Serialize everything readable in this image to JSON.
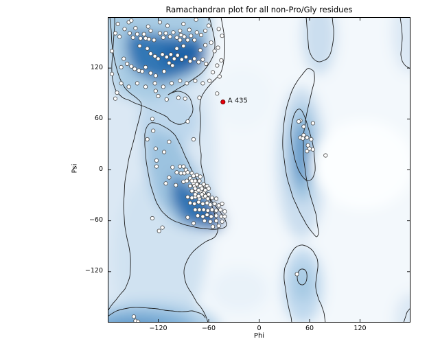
{
  "figure": {
    "title": "Ramachandran plot for all non-Pro/Gly residues",
    "xlabel": "Phi",
    "ylabel": "Psi"
  },
  "chart_data": {
    "type": "scatter",
    "title": "Ramachandran plot for all non-Pro/Gly residues",
    "xlabel": "Phi",
    "ylabel": "Psi",
    "xlim": [
      -180,
      180
    ],
    "ylim": [
      -180,
      180
    ],
    "grid": false,
    "legend": "none",
    "background": "blue kernel-density shading (light=low, dark blue=high) with black contour outlines of the favored and allowed regions (beta-sheet top-left, alpha-helix middle-left, left-handed alpha at phi~55, minor regions bottom-right and at plot edges)",
    "xticks": [
      {
        "value": -120,
        "label": "−120"
      },
      {
        "value": -60,
        "label": "−60"
      },
      {
        "value": 0,
        "label": "0"
      },
      {
        "value": 60,
        "label": "60"
      },
      {
        "value": 120,
        "label": "120"
      }
    ],
    "yticks": [
      {
        "value": 120,
        "label": "120"
      },
      {
        "value": 60,
        "label": "60"
      },
      {
        "value": 0,
        "label": "0"
      },
      {
        "value": -60,
        "label": "−60"
      },
      {
        "value": -120,
        "label": "−120"
      }
    ],
    "series": [
      {
        "name": "non-Pro/Gly residues",
        "marker": "circle",
        "fill": "#ffffff",
        "edge": "#4a4a4a",
        "radius": 2.7,
        "points": [
          [
            -160,
            166
          ],
          [
            -147,
            167
          ],
          [
            -132,
            169
          ],
          [
            -129,
            164
          ],
          [
            -109,
            170
          ],
          [
            -94,
            164
          ],
          [
            -93,
            159
          ],
          [
            -83,
            165
          ],
          [
            -74,
            162
          ],
          [
            -69,
            159
          ],
          [
            -64,
            164
          ],
          [
            -171,
            161
          ],
          [
            -166,
            157
          ],
          [
            -154,
            161
          ],
          [
            -150,
            156
          ],
          [
            -145,
            160
          ],
          [
            -141,
            155
          ],
          [
            -137,
            160
          ],
          [
            -135,
            155
          ],
          [
            -131,
            154
          ],
          [
            -125,
            153
          ],
          [
            -118,
            161
          ],
          [
            -114,
            156
          ],
          [
            -111,
            161
          ],
          [
            -106,
            157
          ],
          [
            -102,
            162
          ],
          [
            -98,
            156
          ],
          [
            -94,
            153
          ],
          [
            -89,
            157
          ],
          [
            -85,
            153
          ],
          [
            -81,
            158
          ],
          [
            -77,
            153
          ],
          [
            -168,
            172
          ],
          [
            -155,
            174
          ],
          [
            -152,
            176
          ],
          [
            -118,
            174
          ],
          [
            -90,
            172
          ],
          [
            -75,
            177
          ],
          [
            -60,
            170
          ],
          [
            -48,
            166
          ],
          [
            -44,
            158
          ],
          [
            -175,
            140
          ],
          [
            -164,
            121
          ],
          [
            -152,
            122
          ],
          [
            -148,
            119
          ],
          [
            -143,
            117
          ],
          [
            -139,
            116
          ],
          [
            -135,
            121
          ],
          [
            -129,
            114
          ],
          [
            -123,
            111
          ],
          [
            -113,
            116
          ],
          [
            -107,
            126
          ],
          [
            -103,
            123
          ],
          [
            -129,
            137
          ],
          [
            -124,
            134
          ],
          [
            -120,
            131
          ],
          [
            -115,
            136
          ],
          [
            -110,
            133
          ],
          [
            -105,
            136
          ],
          [
            -101,
            131
          ],
          [
            -97,
            135
          ],
          [
            -92,
            130
          ],
          [
            -87,
            133
          ],
          [
            -82,
            128
          ],
          [
            -77,
            131
          ],
          [
            -72,
            127
          ],
          [
            -67,
            130
          ],
          [
            -63,
            125
          ],
          [
            -142,
            146
          ],
          [
            -133,
            143
          ],
          [
            -98,
            143
          ],
          [
            -90,
            146
          ],
          [
            -70,
            141
          ],
          [
            -64,
            147
          ],
          [
            -161,
            131
          ],
          [
            -157,
            125
          ],
          [
            -57,
            150
          ],
          [
            -53,
            140
          ],
          [
            -49,
            144
          ],
          [
            -45,
            129
          ],
          [
            -50,
            123
          ],
          [
            -55,
            115
          ],
          [
            -47,
            110
          ],
          [
            -59,
            105
          ],
          [
            -67,
            102
          ],
          [
            -76,
            105
          ],
          [
            -86,
            102
          ],
          [
            -94,
            105
          ],
          [
            -104,
            102
          ],
          [
            -114,
            98
          ],
          [
            -124,
            102
          ],
          [
            -135,
            98
          ],
          [
            -145,
            102
          ],
          [
            -155,
            98
          ],
          [
            -164,
            102
          ],
          [
            -120,
            87
          ],
          [
            -96,
            85
          ],
          [
            -71,
            85
          ],
          [
            -50,
            90
          ],
          [
            -169,
            91
          ],
          [
            -175,
            113
          ],
          [
            -110,
            83
          ],
          [
            -88,
            84
          ],
          [
            -171,
            84
          ],
          [
            -123,
            93
          ],
          [
            -127,
            60
          ],
          [
            -85,
            57
          ],
          [
            -126,
            46
          ],
          [
            -133,
            36
          ],
          [
            -78,
            36
          ],
          [
            -107,
            33
          ],
          [
            -123,
            25
          ],
          [
            -113,
            21
          ],
          [
            -122,
            11
          ],
          [
            -122,
            4
          ],
          [
            -103,
            3
          ],
          [
            -94,
            4
          ],
          [
            -90,
            4
          ],
          [
            -87,
            0
          ],
          [
            -98,
            -3
          ],
          [
            -93,
            -4
          ],
          [
            -89,
            -4
          ],
          [
            -85,
            -3
          ],
          [
            -80,
            -4
          ],
          [
            -107,
            -9
          ],
          [
            -111,
            -16
          ],
          [
            -99,
            -18
          ],
          [
            -90,
            -14
          ],
          [
            -86,
            -13
          ],
          [
            -82,
            -10
          ],
          [
            -78,
            -16
          ],
          [
            -74,
            -6
          ],
          [
            -70,
            -8
          ],
          [
            -78,
            -7
          ],
          [
            -80,
            -13
          ],
          [
            -76,
            -13
          ],
          [
            -71,
            -13
          ],
          [
            -82,
            -19
          ],
          [
            -77,
            -19
          ],
          [
            -73,
            -18
          ],
          [
            -68,
            -20
          ],
          [
            -64,
            -19
          ],
          [
            -61,
            -21
          ],
          [
            -80,
            -25
          ],
          [
            -75,
            -26
          ],
          [
            -70,
            -25
          ],
          [
            -66,
            -27
          ],
          [
            -66,
            -17
          ],
          [
            -70,
            -19
          ],
          [
            -74,
            -17
          ],
          [
            -62,
            -19
          ],
          [
            -85,
            -32
          ],
          [
            -80,
            -33
          ],
          [
            -76,
            -32
          ],
          [
            -71,
            -34
          ],
          [
            -66,
            -32
          ],
          [
            -61,
            -34
          ],
          [
            -56,
            -33
          ],
          [
            -51,
            -34
          ],
          [
            -82,
            -39
          ],
          [
            -77,
            -40
          ],
          [
            -72,
            -38
          ],
          [
            -67,
            -40
          ],
          [
            -62,
            -39
          ],
          [
            -58,
            -41
          ],
          [
            -53,
            -40
          ],
          [
            -48,
            -42
          ],
          [
            -44,
            -40
          ],
          [
            -76,
            -29
          ],
          [
            -72,
            -31
          ],
          [
            -68,
            -29
          ],
          [
            -64,
            -31
          ],
          [
            -60,
            -29
          ],
          [
            -76,
            -22
          ],
          [
            -72,
            -24
          ],
          [
            -68,
            -22
          ],
          [
            -64,
            -24
          ],
          [
            -60,
            -22
          ],
          [
            -76,
            -47
          ],
          [
            -71,
            -47
          ],
          [
            -66,
            -47
          ],
          [
            -61,
            -48
          ],
          [
            -56,
            -47
          ],
          [
            -51,
            -48
          ],
          [
            -46,
            -47
          ],
          [
            -41,
            -49
          ],
          [
            -73,
            -54
          ],
          [
            -67,
            -55
          ],
          [
            -62,
            -53
          ],
          [
            -57,
            -55
          ],
          [
            -51,
            -54
          ],
          [
            -45,
            -55
          ],
          [
            -41,
            -55
          ],
          [
            -65,
            -60
          ],
          [
            -58,
            -61
          ],
          [
            -51,
            -60
          ],
          [
            -44,
            -61
          ],
          [
            -55,
            -67
          ],
          [
            -48,
            -66
          ],
          [
            -127,
            -57
          ],
          [
            -119,
            -72
          ],
          [
            -115,
            -68
          ],
          [
            -85,
            -56
          ],
          [
            -78,
            -63
          ],
          [
            49,
            58
          ],
          [
            47,
            57
          ],
          [
            64,
            55
          ],
          [
            53,
            51
          ],
          [
            53,
            41
          ],
          [
            49,
            38
          ],
          [
            52,
            37
          ],
          [
            57,
            38
          ],
          [
            62,
            36
          ],
          [
            58,
            29
          ],
          [
            60,
            25
          ],
          [
            64,
            24
          ],
          [
            57,
            22
          ],
          [
            79,
            17
          ],
          [
            45,
            -123
          ],
          [
            -149,
            -173
          ],
          [
            -147,
            -178
          ],
          [
            -144,
            -179
          ]
        ]
      }
    ],
    "highlight": {
      "label": "A 435",
      "phi": -43,
      "psi": 80,
      "fill": "#e8000b",
      "edge": "#6d0000"
    },
    "colors": {
      "density_low": "#f3f8fc",
      "density_high": "#1d61a7",
      "contour": "#1c1c1c",
      "frame": "#000000"
    }
  }
}
